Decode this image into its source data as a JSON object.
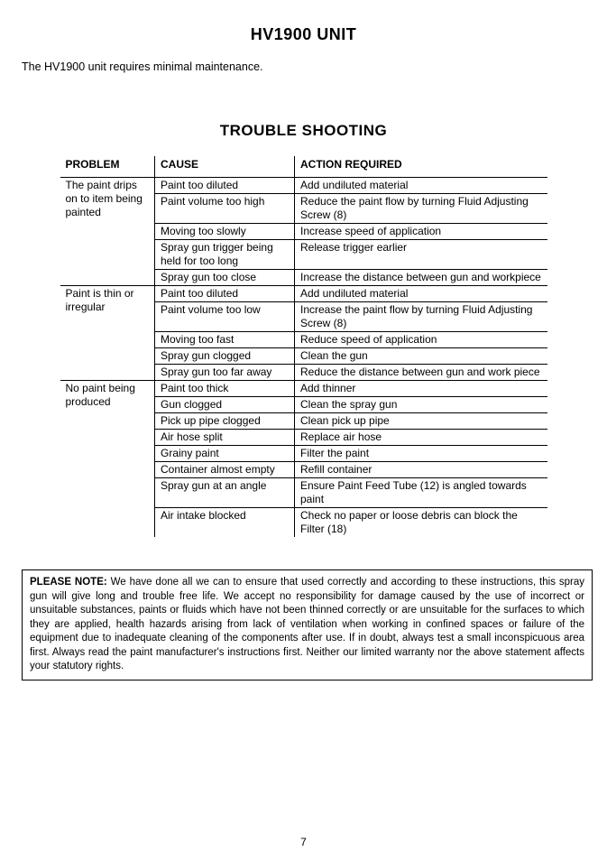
{
  "headings": {
    "unit": "HV1900 UNIT",
    "trouble": "TROUBLE SHOOTING"
  },
  "intro": "The HV1900 unit requires minimal maintenance.",
  "columns": {
    "problem": "PROBLEM",
    "cause": "CAUSE",
    "action": "ACTION REQUIRED"
  },
  "sections": [
    {
      "problem": "The paint drips on to item being painted",
      "rows": [
        {
          "cause": "Paint too diluted",
          "action": "Add undiluted material"
        },
        {
          "cause": "Paint volume too high",
          "action": "Reduce the paint flow by turning Fluid Adjusting Screw (8)"
        },
        {
          "cause": "Moving too slowly",
          "action": "Increase speed of application"
        },
        {
          "cause": "Spray gun trigger being held for too long",
          "action": "Release trigger earlier"
        },
        {
          "cause": "Spray gun too close",
          "action": "Increase the distance between gun and workpiece"
        }
      ]
    },
    {
      "problem": "Paint is thin or irregular",
      "rows": [
        {
          "cause": "Paint too diluted",
          "action": "Add undiluted material"
        },
        {
          "cause": "Paint volume too low",
          "action": "Increase the paint flow by turning Fluid Adjusting Screw (8)"
        },
        {
          "cause": "Moving too fast",
          "action": "Reduce speed of application"
        },
        {
          "cause": "Spray gun clogged",
          "action": "Clean the gun"
        },
        {
          "cause": "Spray gun too far away",
          "action": "Reduce the distance between gun and work piece"
        }
      ]
    },
    {
      "problem": "No paint being produced",
      "rows": [
        {
          "cause": "Paint too thick",
          "action": "Add thinner"
        },
        {
          "cause": "Gun clogged",
          "action": "Clean the spray gun"
        },
        {
          "cause": "Pick up pipe clogged",
          "action": "Clean pick up pipe"
        },
        {
          "cause": "Air hose split",
          "action": "Replace air hose"
        },
        {
          "cause": "Grainy paint",
          "action": "Filter the paint"
        },
        {
          "cause": "Container almost empty",
          "action": "Refill container"
        },
        {
          "cause": "Spray gun at an angle",
          "action": "Ensure Paint Feed Tube (12) is angled towards paint"
        },
        {
          "cause": "Air intake blocked",
          "action": "Check no paper or loose debris can block the Filter  (18)"
        }
      ]
    }
  ],
  "note_label": "PLEASE NOTE:",
  "note_body": " We have done all we can to ensure that used correctly and according to these instructions, this spray gun will give long and trouble free life. We accept no responsibility for damage caused by the use of incorrect or unsuitable substances, paints or fluids which have not been thinned correctly or are unsuitable for the surfaces to which they are applied, health hazards arising from lack of ventilation when working in confined spaces or failure of the equipment due to inadequate cleaning of the components after use. If in doubt, always test a small inconspicuous area first. Always read the paint manufacturer's instructions first. Neither our limited warranty nor the above statement affects your statutory rights.",
  "page_number": "7"
}
